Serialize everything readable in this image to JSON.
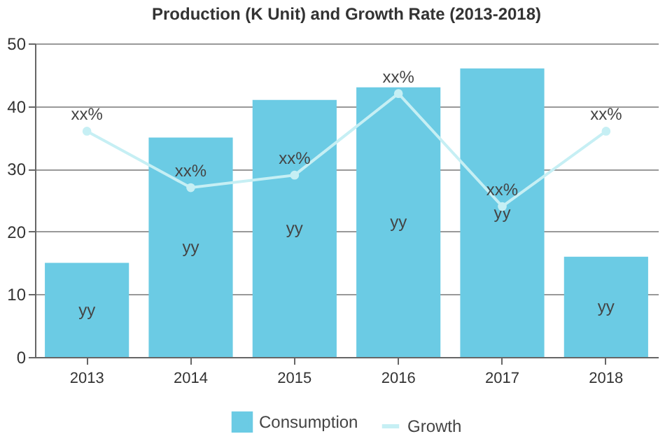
{
  "chart_data": {
    "type": "bar",
    "title": "Production (K Unit) and Growth Rate (2013-2018)",
    "categories": [
      "2013",
      "2014",
      "2015",
      "2016",
      "2017",
      "2018"
    ],
    "series": [
      {
        "name": "Consumption",
        "color": "#6bcbe4",
        "values": [
          15,
          35,
          41,
          43,
          46,
          16
        ],
        "value_labels": [
          "yy",
          "yy",
          "yy",
          "yy",
          "yy",
          "yy"
        ]
      },
      {
        "name": "Growth",
        "type": "line",
        "color": "#c6eff4",
        "values": [
          36,
          27,
          29,
          42,
          24,
          36
        ],
        "value_labels": [
          "xx%",
          "xx%",
          "xx%",
          "xx%",
          "xx%",
          "xx%"
        ]
      }
    ],
    "ylim": [
      0,
      50
    ],
    "yticks": [
      0,
      10,
      20,
      30,
      40,
      50
    ],
    "grid": "y",
    "legend": "bottom",
    "marker": "circle"
  }
}
